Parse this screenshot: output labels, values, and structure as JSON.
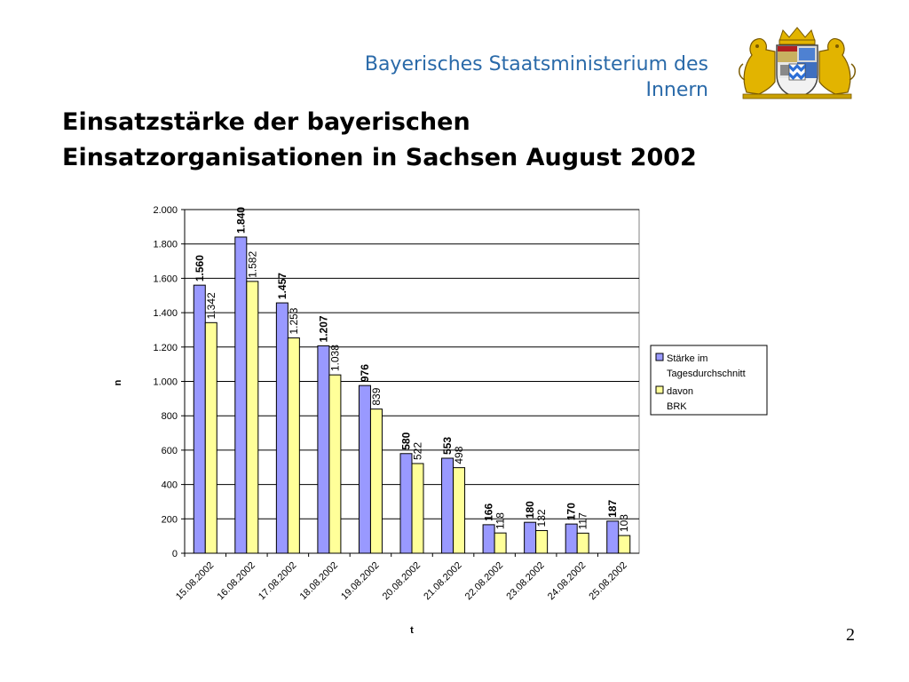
{
  "header": {
    "ministry_line1": "Bayerisches Staatsministerium des",
    "ministry_line2": "Innern",
    "crest": "bavarian-coat-of-arms"
  },
  "slide": {
    "title_line1": "Einsatzstärke der bayerischen",
    "title_line2": "Einsatzorganisationen in Sachsen August 2002",
    "page_number": "2"
  },
  "colors": {
    "series1": "#9999ff",
    "series2": "#ffff99",
    "ministry_text": "#2a6aa9"
  },
  "chart_data": {
    "type": "bar",
    "xlabel": "t",
    "ylabel": "n",
    "ylim": [
      0,
      2000
    ],
    "yticks": [
      0,
      200,
      400,
      600,
      800,
      1000,
      1200,
      1400,
      1600,
      1800,
      2000
    ],
    "ytick_labels": [
      "0",
      "200",
      "400",
      "600",
      "800",
      "1.000",
      "1.200",
      "1.400",
      "1.600",
      "1.800",
      "2.000"
    ],
    "grid": true,
    "legend_position": "right",
    "categories": [
      "15.08.2002",
      "16.08.2002",
      "17.08.2002",
      "18.08.2002",
      "19.08.2002",
      "20.08.2002",
      "21.08.2002",
      "22.08.2002",
      "23.08.2002",
      "24.08.2002",
      "25.08.2002"
    ],
    "series": [
      {
        "name": "Stärke im Tagesdurchschnitt",
        "legend_lines": [
          "Stärke im",
          "Tagesdurchschnitt"
        ],
        "values": [
          1560,
          1840,
          1457,
          1207,
          976,
          580,
          553,
          166,
          180,
          170,
          187
        ],
        "labels": [
          "1.560",
          "1.840",
          "1.457",
          "1.207",
          "976",
          "580",
          "553",
          "166",
          "180",
          "170",
          "187"
        ]
      },
      {
        "name": "davon BRK",
        "legend_lines": [
          "davon",
          "BRK"
        ],
        "values": [
          1342,
          1582,
          1253,
          1038,
          839,
          522,
          498,
          118,
          132,
          117,
          103
        ],
        "labels": [
          "1.342",
          "1.582",
          "1.253",
          "1.038",
          "839",
          "522",
          "498",
          "118",
          "132",
          "117",
          "103"
        ]
      }
    ]
  }
}
